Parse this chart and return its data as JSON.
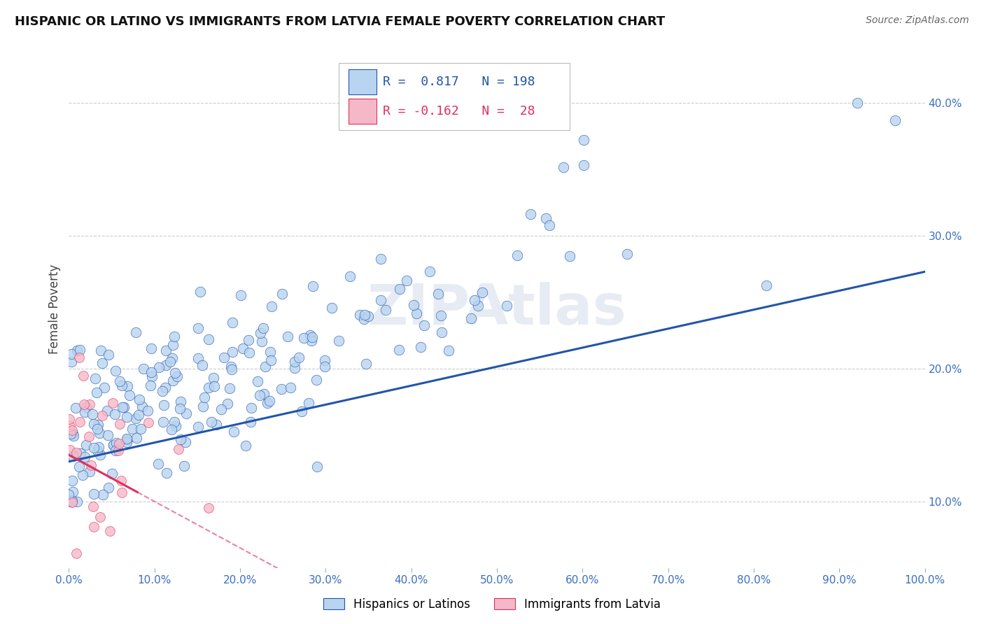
{
  "title": "HISPANIC OR LATINO VS IMMIGRANTS FROM LATVIA FEMALE POVERTY CORRELATION CHART",
  "source": "Source: ZipAtlas.com",
  "ylabel": "Female Poverty",
  "x_min": 0.0,
  "x_max": 100.0,
  "y_min": 5.0,
  "y_max": 44.0,
  "y_ticks": [
    10.0,
    20.0,
    30.0,
    40.0
  ],
  "x_ticks": [
    0.0,
    10.0,
    20.0,
    30.0,
    40.0,
    50.0,
    60.0,
    70.0,
    80.0,
    90.0,
    100.0
  ],
  "blue_R": 0.817,
  "blue_N": 198,
  "pink_R": -0.162,
  "pink_N": 28,
  "blue_color": "#b8d4f0",
  "blue_line_color": "#2255aa",
  "pink_color": "#f5b8c8",
  "pink_line_color": "#e03060",
  "legend_blue_label": "Hispanics or Latinos",
  "legend_pink_label": "Immigrants from Latvia",
  "watermark": "ZIPAtlas",
  "background_color": "#ffffff",
  "grid_color": "#cccccc"
}
